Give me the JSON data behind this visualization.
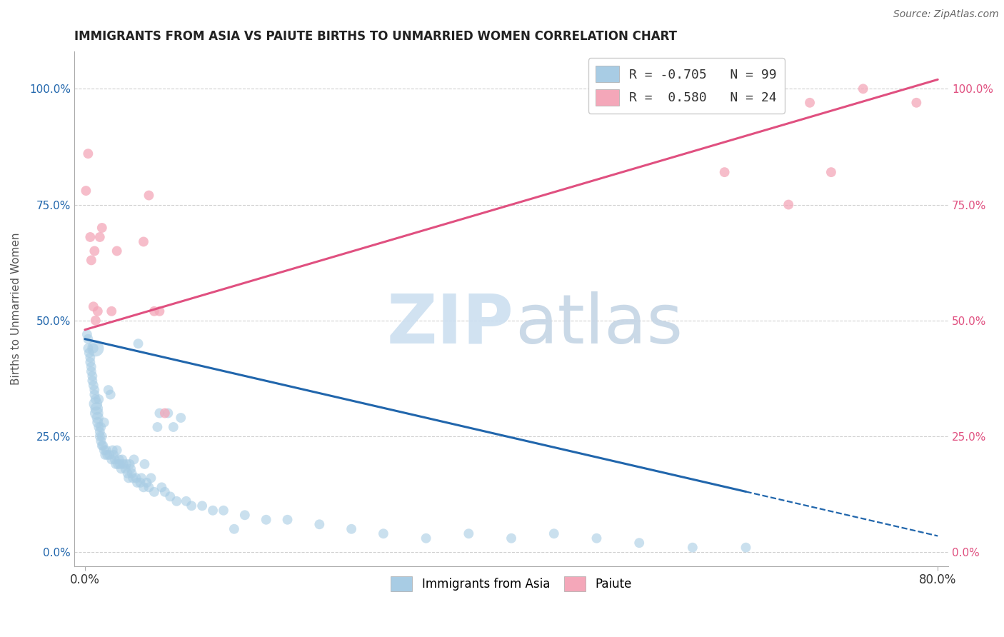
{
  "title": "IMMIGRANTS FROM ASIA VS PAIUTE BIRTHS TO UNMARRIED WOMEN CORRELATION CHART",
  "source": "Source: ZipAtlas.com",
  "ylabel": "Births to Unmarried Women",
  "ytick_vals": [
    0.0,
    25.0,
    50.0,
    75.0,
    100.0
  ],
  "ytick_labels": [
    "0.0%",
    "25.0%",
    "50.0%",
    "75.0%",
    "100.0%"
  ],
  "xtick_vals": [
    0.0,
    80.0
  ],
  "xtick_labels": [
    "0.0%",
    "80.0%"
  ],
  "blue_color": "#a8cce4",
  "pink_color": "#f4a7b9",
  "blue_line_color": "#2166ac",
  "pink_line_color": "#e05080",
  "blue_scatter_x": [
    0.2,
    0.3,
    0.3,
    0.4,
    0.5,
    0.5,
    0.6,
    0.6,
    0.7,
    0.7,
    0.8,
    0.8,
    0.9,
    0.9,
    1.0,
    1.0,
    1.0,
    1.1,
    1.1,
    1.2,
    1.2,
    1.3,
    1.3,
    1.4,
    1.4,
    1.5,
    1.5,
    1.6,
    1.6,
    1.7,
    1.8,
    1.8,
    1.9,
    2.0,
    2.1,
    2.2,
    2.3,
    2.4,
    2.5,
    2.6,
    2.7,
    2.8,
    2.9,
    3.0,
    3.1,
    3.2,
    3.3,
    3.4,
    3.5,
    3.6,
    3.8,
    3.9,
    4.0,
    4.1,
    4.2,
    4.3,
    4.4,
    4.5,
    4.6,
    4.8,
    4.9,
    5.0,
    5.2,
    5.3,
    5.5,
    5.6,
    5.8,
    6.0,
    6.2,
    6.5,
    6.8,
    7.0,
    7.2,
    7.5,
    7.8,
    8.0,
    8.3,
    8.6,
    9.0,
    9.5,
    10.0,
    11.0,
    12.0,
    13.0,
    14.0,
    15.0,
    17.0,
    19.0,
    22.0,
    25.0,
    28.0,
    32.0,
    36.0,
    40.0,
    44.0,
    48.0,
    52.0,
    57.0,
    62.0
  ],
  "blue_scatter_y": [
    47.0,
    46.0,
    44.0,
    43.0,
    42.0,
    41.0,
    40.0,
    39.0,
    38.0,
    37.0,
    44.0,
    36.0,
    35.0,
    34.0,
    33.0,
    44.0,
    32.0,
    31.0,
    30.0,
    29.0,
    28.0,
    27.0,
    33.0,
    26.0,
    25.0,
    27.0,
    24.0,
    25.0,
    23.0,
    23.0,
    22.0,
    28.0,
    21.0,
    22.0,
    21.0,
    35.0,
    21.0,
    34.0,
    20.0,
    22.0,
    21.0,
    20.0,
    19.0,
    22.0,
    19.0,
    20.0,
    19.0,
    18.0,
    20.0,
    19.0,
    18.0,
    19.0,
    17.0,
    16.0,
    19.0,
    18.0,
    17.0,
    16.0,
    20.0,
    16.0,
    15.0,
    45.0,
    15.0,
    16.0,
    14.0,
    19.0,
    15.0,
    14.0,
    16.0,
    13.0,
    27.0,
    30.0,
    14.0,
    13.0,
    30.0,
    12.0,
    27.0,
    11.0,
    29.0,
    11.0,
    10.0,
    10.0,
    9.0,
    9.0,
    5.0,
    8.0,
    7.0,
    7.0,
    6.0,
    5.0,
    4.0,
    3.0,
    4.0,
    3.0,
    4.0,
    3.0,
    2.0,
    1.0,
    1.0
  ],
  "blue_scatter_sizes": [
    100,
    100,
    100,
    100,
    100,
    100,
    100,
    100,
    100,
    100,
    100,
    100,
    100,
    100,
    100,
    280,
    180,
    160,
    180,
    140,
    120,
    100,
    100,
    100,
    100,
    100,
    100,
    100,
    100,
    100,
    100,
    100,
    100,
    100,
    100,
    100,
    100,
    100,
    100,
    100,
    100,
    100,
    100,
    100,
    100,
    100,
    100,
    100,
    100,
    100,
    100,
    100,
    100,
    100,
    100,
    100,
    100,
    100,
    100,
    100,
    100,
    100,
    100,
    100,
    100,
    100,
    100,
    100,
    100,
    100,
    100,
    100,
    100,
    100,
    100,
    100,
    100,
    100,
    100,
    100,
    100,
    100,
    100,
    100,
    100,
    100,
    100,
    100,
    100,
    100,
    100,
    100,
    100,
    100,
    100,
    100,
    100,
    100,
    100
  ],
  "pink_scatter_x": [
    0.1,
    0.3,
    0.5,
    0.6,
    0.8,
    0.9,
    1.0,
    1.2,
    1.4,
    1.6,
    2.5,
    3.0,
    5.5,
    6.0,
    6.5,
    7.0,
    7.5,
    60.0,
    63.0,
    66.0,
    68.0,
    70.0,
    73.0,
    78.0
  ],
  "pink_scatter_y": [
    78.0,
    86.0,
    68.0,
    63.0,
    53.0,
    65.0,
    50.0,
    52.0,
    68.0,
    70.0,
    52.0,
    65.0,
    67.0,
    77.0,
    52.0,
    52.0,
    30.0,
    82.0,
    97.0,
    75.0,
    97.0,
    82.0,
    100.0,
    97.0
  ],
  "pink_scatter_sizes": [
    100,
    100,
    100,
    100,
    100,
    100,
    100,
    100,
    100,
    100,
    100,
    100,
    100,
    100,
    100,
    100,
    100,
    100,
    100,
    100,
    100,
    100,
    100,
    100
  ],
  "blue_trend_x": [
    0.0,
    62.0,
    62.0,
    80.0
  ],
  "blue_trend_y": [
    46.0,
    10.5,
    10.5,
    3.5
  ],
  "blue_trend_solid_end": 62.0,
  "pink_trend_x": [
    0.0,
    80.0
  ],
  "pink_trend_y": [
    48.0,
    102.0
  ],
  "xlim": [
    -1.0,
    81.0
  ],
  "ylim": [
    -3.0,
    108.0
  ],
  "background_color": "#ffffff",
  "grid_color": "#d0d0d0",
  "legend_top_labels": [
    "R = -0.705   N = 99",
    "R =  0.580   N = 24"
  ],
  "legend_bottom_labels": [
    "Immigrants from Asia",
    "Paiute"
  ]
}
